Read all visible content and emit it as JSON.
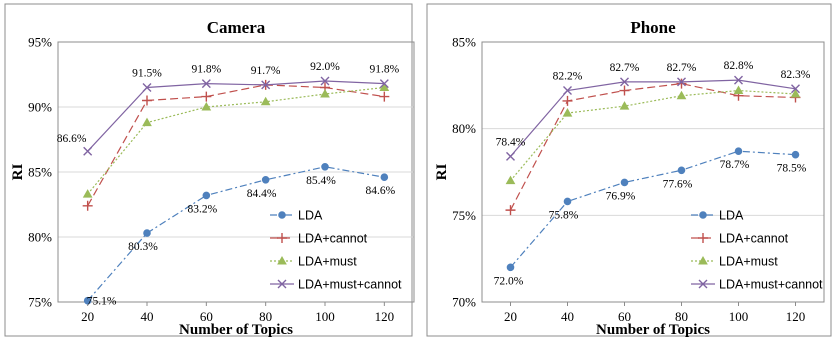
{
  "chart_data": [
    {
      "type": "line",
      "title": "Camera",
      "xlabel": "Number of Topics",
      "ylabel": "RI",
      "x": [
        20,
        40,
        60,
        80,
        100,
        120
      ],
      "ylim": [
        75,
        95
      ],
      "yticks": [
        75,
        80,
        85,
        90,
        95
      ],
      "ytick_labels": [
        "75%",
        "80%",
        "85%",
        "90%",
        "95%"
      ],
      "grid": "horizontal",
      "legend_position": "lower-right",
      "series": [
        {
          "name": "LDA",
          "values": [
            75.1,
            80.3,
            83.2,
            84.4,
            85.4,
            84.6
          ],
          "color": "#4f81bd",
          "marker": "circle",
          "dash": "dashdot",
          "labels": [
            "75.1%",
            "80.3%",
            "83.2%",
            "84.4%",
            "85.4%",
            "84.6%"
          ]
        },
        {
          "name": "LDA+cannot",
          "values": [
            82.4,
            90.5,
            90.8,
            91.7,
            91.5,
            90.8
          ],
          "color": "#c0504d",
          "marker": "plus",
          "dash": "longdash"
        },
        {
          "name": "LDA+must",
          "values": [
            83.3,
            88.8,
            90.0,
            90.4,
            91.0,
            91.5
          ],
          "color": "#9bbb59",
          "marker": "triangle",
          "dash": "dotted"
        },
        {
          "name": "LDA+must+cannot",
          "values": [
            86.6,
            91.5,
            91.8,
            91.7,
            92.0,
            91.8
          ],
          "color": "#8064a2",
          "marker": "x",
          "dash": "solid",
          "labels": [
            "86.6%",
            "91.5%",
            "91.8%",
            "91.7%",
            "92.0%",
            "91.8%"
          ]
        }
      ]
    },
    {
      "type": "line",
      "title": "Phone",
      "xlabel": "Number of Topics",
      "ylabel": "RI",
      "x": [
        20,
        40,
        60,
        80,
        100,
        120
      ],
      "ylim": [
        70,
        85
      ],
      "yticks": [
        70,
        75,
        80,
        85
      ],
      "ytick_labels": [
        "70%",
        "75%",
        "80%",
        "85%"
      ],
      "grid": "horizontal",
      "legend_position": "lower-right",
      "series": [
        {
          "name": "LDA",
          "values": [
            72.0,
            75.8,
            76.9,
            77.6,
            78.7,
            78.5
          ],
          "color": "#4f81bd",
          "marker": "circle",
          "dash": "dashdot",
          "labels": [
            "72.0%",
            "75.8%",
            "76.9%",
            "77.6%",
            "78.7%",
            "78.5%"
          ]
        },
        {
          "name": "LDA+cannot",
          "values": [
            75.3,
            81.6,
            82.2,
            82.6,
            81.9,
            81.8
          ],
          "color": "#c0504d",
          "marker": "plus",
          "dash": "longdash"
        },
        {
          "name": "LDA+must",
          "values": [
            77.0,
            80.9,
            81.3,
            81.9,
            82.2,
            82.0
          ],
          "color": "#9bbb59",
          "marker": "triangle",
          "dash": "dotted"
        },
        {
          "name": "LDA+must+cannot",
          "values": [
            78.4,
            82.2,
            82.7,
            82.7,
            82.8,
            82.3
          ],
          "color": "#8064a2",
          "marker": "x",
          "dash": "solid",
          "labels": [
            "78.4%",
            "82.2%",
            "82.7%",
            "82.7%",
            "82.8%",
            "82.3%"
          ]
        }
      ]
    }
  ]
}
